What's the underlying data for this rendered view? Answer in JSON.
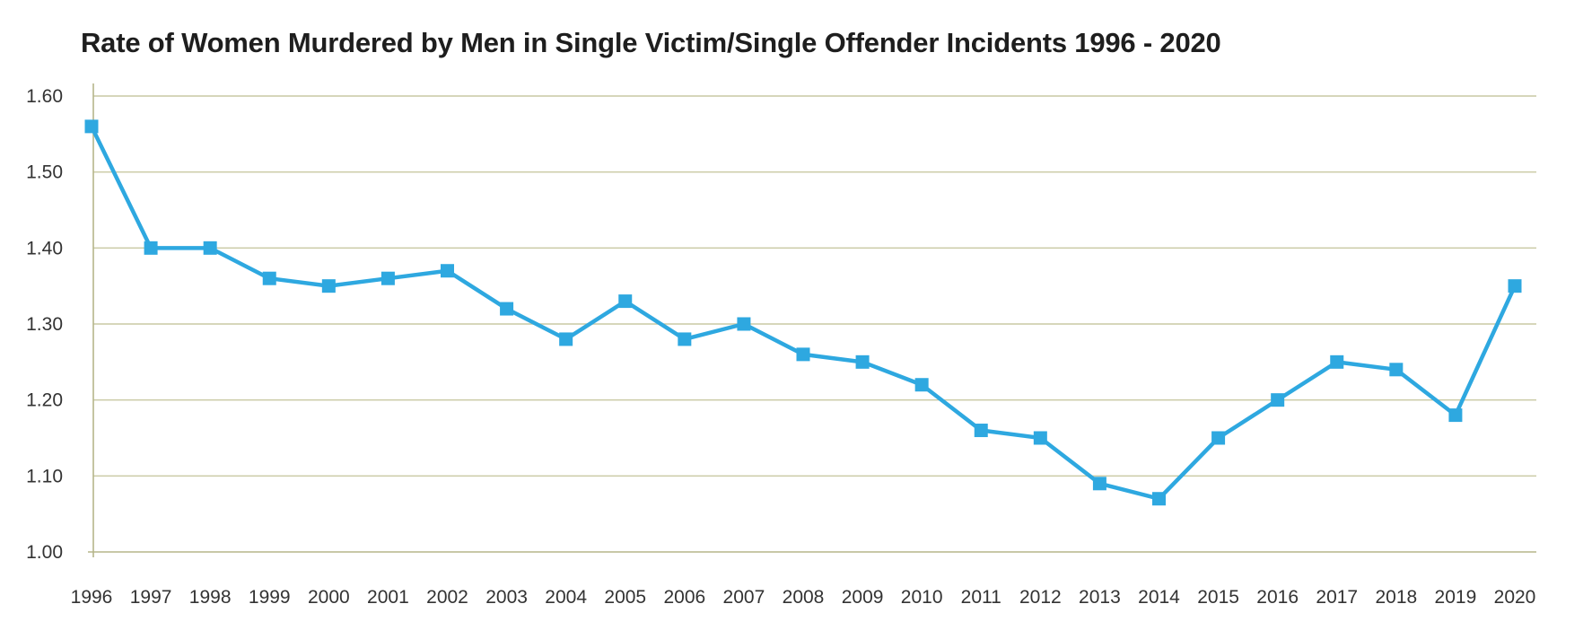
{
  "chart_data": {
    "type": "line",
    "title": "Rate of Women Murdered by Men in Single Victim/Single Offender Incidents 1996 - 2020",
    "xlabel": "",
    "ylabel": "",
    "categories": [
      "1996",
      "1997",
      "1998",
      "1999",
      "2000",
      "2001",
      "2002",
      "2003",
      "2004",
      "2005",
      "2006",
      "2007",
      "2008",
      "2009",
      "2010",
      "2011",
      "2012",
      "2013",
      "2014",
      "2015",
      "2016",
      "2017",
      "2018",
      "2019",
      "2020"
    ],
    "series": [
      {
        "values": [
          1.56,
          1.4,
          1.4,
          1.36,
          1.35,
          1.36,
          1.37,
          1.32,
          1.28,
          1.33,
          1.28,
          1.3,
          1.26,
          1.25,
          1.22,
          1.16,
          1.15,
          1.09,
          1.07,
          1.15,
          1.2,
          1.25,
          1.24,
          1.18,
          1.35
        ],
        "marker": "square"
      }
    ],
    "ylim": [
      1.0,
      1.6
    ],
    "yticks": [
      "1.00",
      "1.10",
      "1.20",
      "1.30",
      "1.40",
      "1.50",
      "1.60"
    ],
    "grid": true,
    "legend": "none",
    "colors": {
      "line": "#2ea8e0",
      "grid": "#c9c9a3",
      "axis": "#b5b58a"
    }
  }
}
